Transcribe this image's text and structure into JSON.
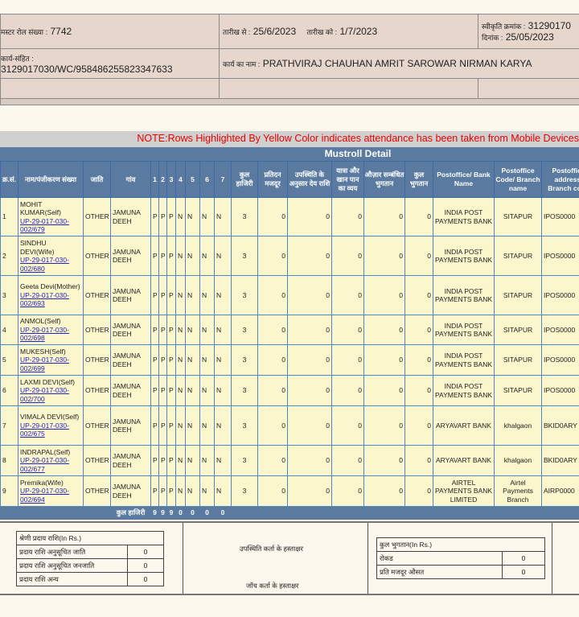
{
  "header": {
    "muster_roll_label": "मस्टर रोल संख्या :",
    "muster_roll_no": "7742",
    "date_from_label": "तारीख से :",
    "date_from": "25/6/2023",
    "date_to_label": "तारीख को :",
    "date_to": "1/7/2023",
    "sanction_label": "स्वीकृति क्रमांक :",
    "sanction_no": "31290170",
    "date_label": "दिनांक :",
    "date": "25/05/2023",
    "work_code_label": "कार्य-संहित :",
    "work_code": "3129017030/WC/958486255823347633",
    "work_name_label": "कार्य का नाम :",
    "work_name": "PRATHVIRAJ CHAUHAN AMRIT SAROWAR NIRMAN KARYA"
  },
  "note": "NOTE:Rows Highlighted By Yellow Color indicates attendance has been taken from Mobile Devices",
  "section_title": "Mustroll Detail",
  "columns": [
    "क्र.सं.",
    "नाम/पंजीकरण संख्या",
    "जाति",
    "गांव",
    "1",
    "2",
    "3",
    "4",
    "5",
    "6",
    "7",
    "कुल हाजिरी",
    "प्रतिदन मजदूर",
    "उपस्थिति के अनुसार देय राशि",
    "यात्रा और खान पान का व्यय",
    "औज़ार सम्बंधित भुगतान",
    "कुल भुगतान",
    "Postoffice/ Bank Name",
    "Postoffice Code/ Branch name",
    "Postoffice address/ Branch code"
  ],
  "rows": [
    {
      "sr": "1",
      "name": "MOHIT KUMAR(Self)",
      "reg": "UP-29-017-030-002/679",
      "caste": "OTHER",
      "village": "JAMUNA DEEH",
      "att": [
        "P",
        "P",
        "P",
        "N",
        "N",
        "N",
        "N"
      ],
      "total": "3",
      "daily": "0",
      "due": "0",
      "travel": "0",
      "tools": "0",
      "paid": "0",
      "bank": "INDIA POST PAYMENTS BANK",
      "branch": "SITAPUR",
      "code": "IPOS0000"
    },
    {
      "sr": "2",
      "name": "SINDHU DEVI(Wife)",
      "reg": "UP-29-017-030-002/680",
      "caste": "OTHER",
      "village": "JAMUNA DEEH",
      "att": [
        "P",
        "P",
        "P",
        "N",
        "N",
        "N",
        "N"
      ],
      "total": "3",
      "daily": "0",
      "due": "0",
      "travel": "0",
      "tools": "0",
      "paid": "0",
      "bank": "INDIA POST PAYMENTS BANK",
      "branch": "SITAPUR",
      "code": "IPOS0000"
    },
    {
      "sr": "3",
      "name": "Geeta Devi(Mother)",
      "reg": "UP-29-017-030-002/693",
      "caste": "OTHER",
      "village": "JAMUNA DEEH",
      "att": [
        "P",
        "P",
        "P",
        "N",
        "N",
        "N",
        "N"
      ],
      "total": "3",
      "daily": "0",
      "due": "0",
      "travel": "0",
      "tools": "0",
      "paid": "0",
      "bank": "INDIA POST PAYMENTS BANK",
      "branch": "SITAPUR",
      "code": "IPOS0000"
    },
    {
      "sr": "4",
      "name": "ANMOL(Self)",
      "reg": "UP-29-017-030-002/698",
      "caste": "OTHER",
      "village": "JAMUNA DEEH",
      "att": [
        "P",
        "P",
        "P",
        "N",
        "N",
        "N",
        "N"
      ],
      "total": "3",
      "daily": "0",
      "due": "0",
      "travel": "0",
      "tools": "0",
      "paid": "0",
      "bank": "INDIA POST PAYMENTS BANK",
      "branch": "SITAPUR",
      "code": "IPOS0000"
    },
    {
      "sr": "5",
      "name": "MUKESH(Self)",
      "reg": "UP-29-017-030-002/699",
      "caste": "OTHER",
      "village": "JAMUNA DEEH",
      "att": [
        "P",
        "P",
        "P",
        "N",
        "N",
        "N",
        "N"
      ],
      "total": "3",
      "daily": "0",
      "due": "0",
      "travel": "0",
      "tools": "0",
      "paid": "0",
      "bank": "INDIA POST PAYMENTS BANK",
      "branch": "SITAPUR",
      "code": "IPOS0000"
    },
    {
      "sr": "6",
      "name": "LAXMI DEVI(Self)",
      "reg": "UP-29-017-030-002/700",
      "caste": "OTHER",
      "village": "JAMUNA DEEH",
      "att": [
        "P",
        "P",
        "P",
        "N",
        "N",
        "N",
        "N"
      ],
      "total": "3",
      "daily": "0",
      "due": "0",
      "travel": "0",
      "tools": "0",
      "paid": "0",
      "bank": "INDIA POST PAYMENTS BANK",
      "branch": "SITAPUR",
      "code": "IPOS0000"
    },
    {
      "sr": "7",
      "name": "VIMALA DEVI(Self)",
      "reg": "UP-29-017-030-002/675",
      "caste": "OTHER",
      "village": "JAMUNA DEEH",
      "att": [
        "P",
        "P",
        "P",
        "N",
        "N",
        "N",
        "N"
      ],
      "total": "3",
      "daily": "0",
      "due": "0",
      "travel": "0",
      "tools": "0",
      "paid": "0",
      "bank": "ARYAVART BANK",
      "branch": "khalgaon",
      "code": "BKID0ARY"
    },
    {
      "sr": "8",
      "name": "INDRAPAL(Self)",
      "reg": "UP-29-017-030-002/677",
      "caste": "OTHER",
      "village": "JAMUNA DEEH",
      "att": [
        "P",
        "P",
        "P",
        "N",
        "N",
        "N",
        "N"
      ],
      "total": "3",
      "daily": "0",
      "due": "0",
      "travel": "0",
      "tools": "0",
      "paid": "0",
      "bank": "ARYAVART BANK",
      "branch": "khalgaon",
      "code": "BKID0ARY"
    },
    {
      "sr": "9",
      "name": "Premika(Wife)",
      "reg": "UP-29-017-030-002/694",
      "caste": "OTHER",
      "village": "JAMUNA DEEH",
      "att": [
        "P",
        "P",
        "P",
        "N",
        "N",
        "N",
        "N"
      ],
      "total": "3",
      "daily": "0",
      "due": "0",
      "travel": "0",
      "tools": "0",
      "paid": "0",
      "bank": "AIRTEL PAYMENTS BANK LIMITED",
      "branch": "Airtel Payments Branch",
      "code": "AIRP0000"
    }
  ],
  "footer_row": {
    "label": "कुल हाजिरी",
    "totals": [
      "9",
      "9",
      "9",
      "0",
      "0",
      "0",
      "0"
    ]
  },
  "summary": {
    "category_title": "श्रेणी प्रदाय राशि(In Rs.)",
    "category_rows": [
      {
        "label": "प्रदाय राशि अनुसूचित जाति",
        "value": "0"
      },
      {
        "label": "प्रदाय राशि अनुसूचित जनजाति",
        "value": "0"
      },
      {
        "label": "प्रदाय राशि अन्य",
        "value": "0"
      }
    ],
    "attendance_sign": "उपस्थिति कर्ता के हस्ताक्षर",
    "check_sign": "जॉच कर्ता के हस्ताक्षर",
    "payment_title": "कुल भुगतान(In Rs.)",
    "payment_rows": [
      {
        "label": "रोकड",
        "value": "0"
      },
      {
        "label": "प्रति मजदूर औसत",
        "value": "0"
      }
    ]
  }
}
